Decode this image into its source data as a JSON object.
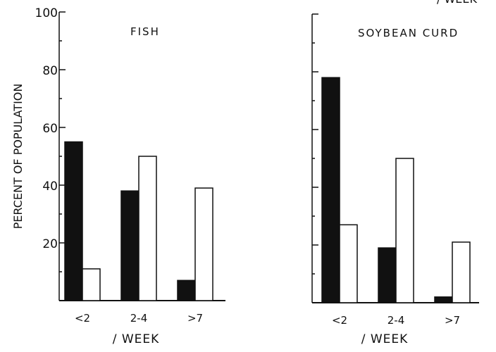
{
  "chart_data": [
    {
      "type": "bar",
      "title": "FISH",
      "ylabel": "PERCENT OF POPULATION",
      "xlabel": "/ WEEK",
      "categories": [
        "<2",
        "2-4",
        ">7"
      ],
      "ylim": [
        0,
        100
      ],
      "yticks": [
        "20",
        "40",
        "60",
        "80",
        "100"
      ],
      "series": [
        {
          "fill": "black",
          "values": [
            55,
            38,
            7
          ]
        },
        {
          "fill": "white",
          "values": [
            11,
            50,
            39
          ]
        }
      ]
    },
    {
      "type": "bar",
      "title": "SOYBEAN CURD",
      "xlabel": "/ WEEK",
      "categories": [
        "<2",
        "2-4",
        ">7"
      ],
      "ylim": [
        0,
        100
      ],
      "yticks": [],
      "series": [
        {
          "fill": "black",
          "values": [
            78,
            19,
            2
          ]
        },
        {
          "fill": "white",
          "values": [
            27,
            50,
            21
          ]
        }
      ]
    }
  ],
  "top_fragment": "/ WEEK",
  "colors": {
    "ink": "#111111",
    "background": "#ffffff"
  }
}
